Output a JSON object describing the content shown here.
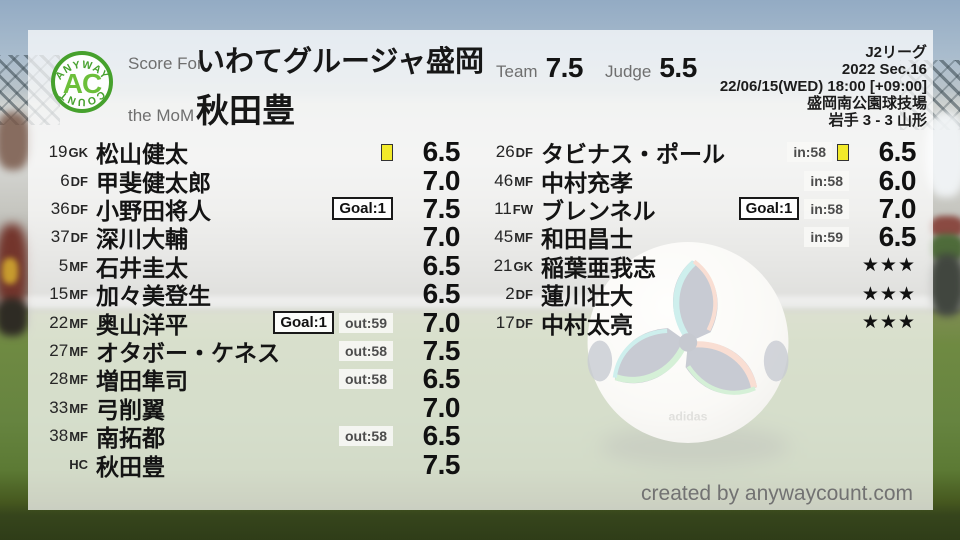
{
  "logo": {
    "arc_top": "ANYWAY",
    "arc_bottom": "COUNT",
    "monogram": "AC",
    "green": "#46a12d",
    "light_green": "#6cbf3a"
  },
  "header": {
    "score_for_label": "Score For",
    "team_name": "いわてグルージャ盛岡",
    "mom_label": "the MoM",
    "mom_name": "秋田豊",
    "team_label": "Team",
    "team_score": "7.5",
    "judge_label": "Judge",
    "judge_score": "5.5"
  },
  "meta": {
    "competition": "J2リーグ",
    "edition": "2022 Sec.16",
    "datetime": "22/06/15(WED) 18:00 [+09:00]",
    "venue": "盛岡南公園球技場",
    "result": "岩手 3 - 3 山形"
  },
  "players_left": [
    {
      "num": "19",
      "pos": "GK",
      "name": "松山健太",
      "card": "yellow",
      "score": "6.5"
    },
    {
      "num": "6",
      "pos": "DF",
      "name": "甲斐健太郎",
      "score": "7.0"
    },
    {
      "num": "36",
      "pos": "DF",
      "name": "小野田将人",
      "goal": "Goal:1",
      "score": "7.5"
    },
    {
      "num": "37",
      "pos": "DF",
      "name": "深川大輔",
      "score": "7.0"
    },
    {
      "num": "5",
      "pos": "MF",
      "name": "石井圭太",
      "score": "6.5"
    },
    {
      "num": "15",
      "pos": "MF",
      "name": "加々美登生",
      "score": "6.5"
    },
    {
      "num": "22",
      "pos": "MF",
      "name": "奥山洋平",
      "goal": "Goal:1",
      "sub": "out:59",
      "score": "7.0"
    },
    {
      "num": "27",
      "pos": "MF",
      "name": "オタボー・ケネス",
      "sub": "out:58",
      "score": "7.5"
    },
    {
      "num": "28",
      "pos": "MF",
      "name": "増田隼司",
      "sub": "out:58",
      "score": "6.5"
    },
    {
      "num": "33",
      "pos": "MF",
      "name": "弓削翼",
      "score": "7.0"
    },
    {
      "num": "38",
      "pos": "MF",
      "name": "南拓都",
      "sub": "out:58",
      "score": "6.5"
    },
    {
      "num": "",
      "pos": "HC",
      "name": "秋田豊",
      "score": "7.5"
    }
  ],
  "players_right": [
    {
      "num": "26",
      "pos": "DF",
      "name": "タビナス・ポール",
      "sub": "in:58",
      "card": "yellow",
      "score": "6.5"
    },
    {
      "num": "46",
      "pos": "MF",
      "name": "中村充孝",
      "sub": "in:58",
      "score": "6.0"
    },
    {
      "num": "11",
      "pos": "FW",
      "name": "ブレンネル",
      "goal": "Goal:1",
      "sub": "in:58",
      "score": "7.0"
    },
    {
      "num": "45",
      "pos": "MF",
      "name": "和田昌士",
      "sub": "in:59",
      "score": "6.5"
    },
    {
      "num": "21",
      "pos": "GK",
      "name": "稲葉亜我志",
      "score": "★★★",
      "stars": true
    },
    {
      "num": "2",
      "pos": "DF",
      "name": "蓮川壮大",
      "score": "★★★",
      "stars": true
    },
    {
      "num": "17",
      "pos": "DF",
      "name": "中村太亮",
      "score": "★★★",
      "stars": true
    }
  ],
  "footer": {
    "credit": "created by anywaycount.com"
  },
  "colors": {
    "card_yellow": "#f2ea2a",
    "panel": "rgba(255,255,255,0.73)"
  }
}
